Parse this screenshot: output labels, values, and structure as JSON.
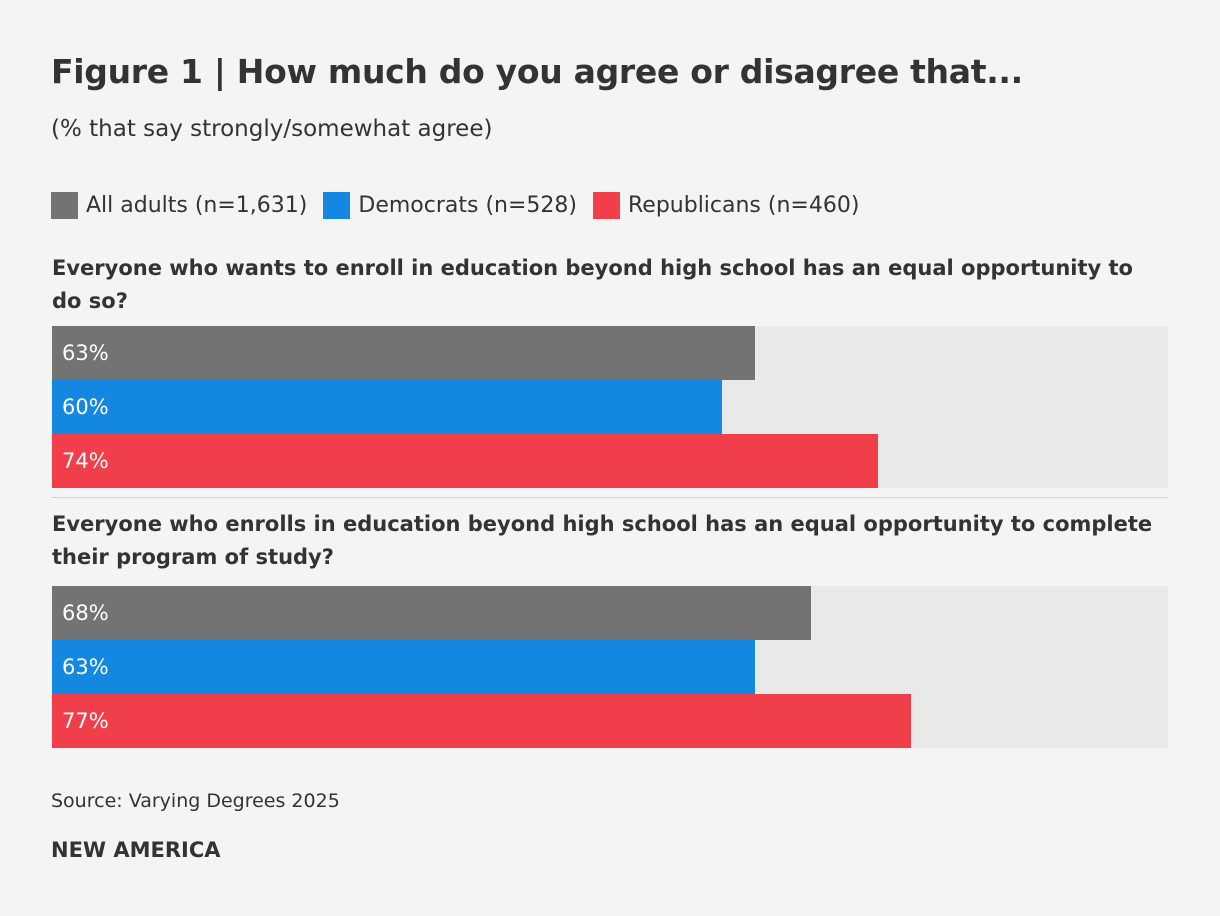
{
  "title": "Figure 1 | How much do you agree or disagree that...",
  "subtitle": "(% that say strongly/somewhat agree)",
  "source": "Source: Varying Degrees 2025",
  "brand": "NEW AMERICA",
  "colors": {
    "all_adults": "#737373",
    "democrats": "#1488e0",
    "republicans": "#f03e4a",
    "track": "#e9e9e9"
  },
  "chart_data": {
    "type": "bar",
    "orientation": "horizontal",
    "xlim": [
      0,
      100
    ],
    "unit": "%",
    "legend": [
      "All adults (n=1,631)",
      "Democrats (n=528)",
      "Republicans (n=460)"
    ],
    "categories": [
      "Everyone who wants to enroll in education beyond high school has an equal opportunity to do so?",
      "Everyone who enrolls in education beyond high school has an equal opportunity to complete their program of study?"
    ],
    "series": [
      {
        "name": "All adults (n=1,631)",
        "values": [
          63,
          68
        ],
        "labels": [
          "63%",
          "68%"
        ]
      },
      {
        "name": "Democrats (n=528)",
        "values": [
          60,
          63
        ],
        "labels": [
          "60%",
          "63%"
        ]
      },
      {
        "name": "Republicans (n=460)",
        "values": [
          74,
          77
        ],
        "labels": [
          "74%",
          "77%"
        ]
      }
    ]
  }
}
